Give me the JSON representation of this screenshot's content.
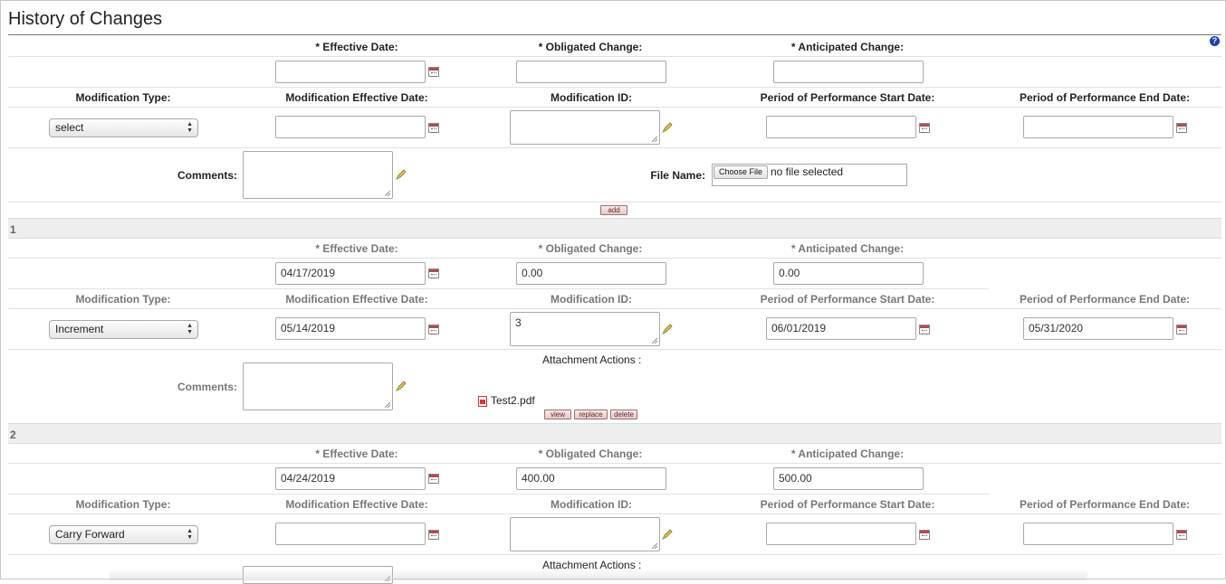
{
  "title": "History of Changes",
  "help_symbol": "?",
  "labels": {
    "effective_date": "*  Effective Date:",
    "obligated_change": "* Obligated Change:",
    "anticipated_change": "* Anticipated Change:",
    "modification_type": "Modification Type:",
    "modification_effective_date": "Modification Effective Date:",
    "modification_id": "Modification ID:",
    "pop_start": "Period of Performance Start Date:",
    "pop_end": "Period of Performance End Date:",
    "comments": "Comments:",
    "file_name": "File Name:",
    "attachment_actions": "Attachment Actions :"
  },
  "new_entry": {
    "effective_date": "",
    "obligated_change": "",
    "anticipated_change": "",
    "modification_type": "select",
    "modification_effective_date": "",
    "modification_id": "",
    "pop_start": "",
    "pop_end": "",
    "comments": "",
    "choose_file_label": "Choose File",
    "file_status": "no file selected",
    "add_label": "add"
  },
  "entries": [
    {
      "number": "1",
      "effective_date": "04/17/2019",
      "obligated_change": "0.00",
      "anticipated_change": "0.00",
      "modification_type": "Increment",
      "modification_effective_date": "05/14/2019",
      "modification_id": "3",
      "pop_start": "06/01/2019",
      "pop_end": "05/31/2020",
      "comments": "",
      "attachment": "Test2.pdf",
      "actions": [
        "view",
        "replace",
        "delete"
      ]
    },
    {
      "number": "2",
      "effective_date": "04/24/2019",
      "obligated_change": "400.00",
      "anticipated_change": "500.00",
      "modification_type": "Carry Forward",
      "modification_effective_date": "",
      "modification_id": "",
      "pop_start": "",
      "pop_end": "",
      "comments": ""
    }
  ],
  "colors": {
    "help_badge": "#1c3fb0",
    "row_band": "#eeeeee",
    "action_button_text": "#6b1f1f"
  }
}
